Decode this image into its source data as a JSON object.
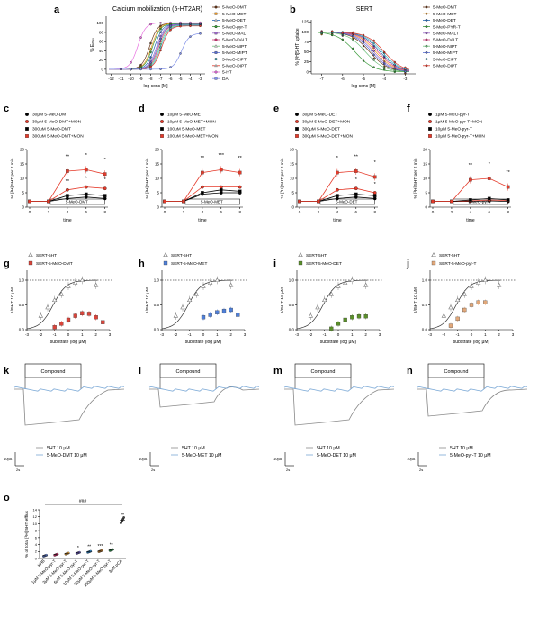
{
  "panels": [
    {
      "id": "a",
      "letter": "a",
      "kind": "curves",
      "title": "Calcium mobilization (5-HT2AR)",
      "ylabel": "% Eₘₐₓ",
      "xlabel": "log conc [M]",
      "xticks": [
        "-12",
        "-11",
        "-10",
        "-9",
        "-8",
        "-7",
        "-6",
        "-5",
        "-4",
        "-3"
      ],
      "yticks": [
        "0",
        "20",
        "40",
        "60",
        "80",
        "100"
      ],
      "legend": [
        "5-MeO-DMT",
        "5-MeO-MET",
        "5-MeO-DET",
        "5-MeO-pyr-T",
        "5-MeO-MALT",
        "5-MeO-DALT",
        "5-MeO-NIPT",
        "5-MeO-MIPT",
        "5-MeO-EIPT",
        "5-MeO-DIPT",
        "5-HT",
        "DA"
      ]
    },
    {
      "id": "b",
      "letter": "b",
      "kind": "curves",
      "title": "SERT",
      "ylabel": "% [³H]5-HT uptake",
      "xlabel": "log conc [M]",
      "xticks": [
        "-7",
        "-6",
        "-5",
        "-4",
        "-3"
      ],
      "yticks": [
        "0",
        "25",
        "50",
        "75",
        "100",
        "125"
      ],
      "legend": [
        "5-MeO-DMT",
        "5-MeO-MET",
        "5-MeO-DET",
        "5-MeO-PYR-T",
        "5-MeO-MALT",
        "5-MeO-DALT",
        "5-MeO-NIPT",
        "5-MeO-MIPT",
        "5-MeO-EIPT",
        "5-MeO-DIPT"
      ]
    },
    {
      "id": "c",
      "letter": "c",
      "kind": "release",
      "ylabel": "% [³H] 5HT per 2 min",
      "xlabel": "time",
      "bar": "5-MeO-DMT",
      "legend": [
        "30μM 5-MeO-DMT",
        "30μM 5-MeO-DMT+MON",
        "300μM 5-MeO-DMT",
        "300μM 5-MeO-DMT+MON"
      ],
      "xticks": [
        "0",
        "2",
        "4",
        "6",
        "8"
      ],
      "yticks": [
        "0",
        "5",
        "10",
        "15",
        "20"
      ]
    },
    {
      "id": "d",
      "letter": "d",
      "kind": "release",
      "ylabel": "% [³H] 5HT per 2 min",
      "xlabel": "time",
      "bar": "5-MeO-MET",
      "legend": [
        "10μM 5-MeO-MET",
        "10μM 5-MeO-MET+MON",
        "100μM 5-MeO-MET",
        "100μM 5-MeO-MET+MON"
      ],
      "xticks": [
        "0",
        "2",
        "4",
        "6",
        "8"
      ],
      "yticks": [
        "0",
        "5",
        "10",
        "15",
        "20"
      ]
    },
    {
      "id": "e",
      "letter": "e",
      "kind": "release",
      "ylabel": "% [³H] 5HT per 2 min",
      "xlabel": "time",
      "bar": "5-MeO-DET",
      "legend": [
        "30μM 5-MeO-DET",
        "30μM 5-MeO-DET+MON",
        "300μM 5-MeO-DET",
        "300μM 5-MeO-DET+MON"
      ],
      "xticks": [
        "0",
        "2",
        "4",
        "6",
        "8"
      ],
      "yticks": [
        "0",
        "5",
        "10",
        "15",
        "20"
      ]
    },
    {
      "id": "f",
      "letter": "f",
      "kind": "release",
      "ylabel": "% [³H] 5HT per 2 min",
      "xlabel": "time",
      "bar": "5-MeO-pyr-T",
      "legend": [
        "1μM 5-MeO-pyr-T",
        "1μM 5-MeO-pyr-T+MON",
        "10μM 5-MeO-pyr-T",
        "10μM 5-MeO-pyr-T+MON"
      ],
      "xticks": [
        "0",
        "2",
        "4",
        "6",
        "8"
      ],
      "yticks": [
        "0",
        "5",
        "10",
        "15",
        "20"
      ]
    },
    {
      "id": "g",
      "letter": "g",
      "kind": "ratio",
      "ylabel": "I/I5HT 10 μM",
      "xlabel": "substrate (log μM)",
      "legend": [
        "SERT-5HT",
        "SERT-5-MeO-DMT"
      ],
      "color": "#d9443a",
      "xticks": [
        "-3",
        "-2",
        "-1",
        "0",
        "1",
        "2",
        "3"
      ],
      "yticks": [
        "0.0",
        "0.5",
        "1.0"
      ]
    },
    {
      "id": "h",
      "letter": "h",
      "kind": "ratio",
      "ylabel": "I/I5HT 10 μM",
      "xlabel": "substrate (log μM)",
      "legend": [
        "SERT-5HT",
        "SERT-5-MeO-MET"
      ],
      "color": "#4f7fd8",
      "xticks": [
        "-3",
        "-2",
        "-1",
        "0",
        "1",
        "2",
        "3"
      ],
      "yticks": [
        "0.0",
        "0.5",
        "1.0"
      ]
    },
    {
      "id": "i",
      "letter": "i",
      "kind": "ratio",
      "ylabel": "I/I5HT 10 μM",
      "xlabel": "substrate (log μM)",
      "legend": [
        "SERT-5HT",
        "SERT-5-MeO-DET"
      ],
      "color": "#5a8f2a",
      "xticks": [
        "-3",
        "-2",
        "-1",
        "0",
        "1",
        "2",
        "3"
      ],
      "yticks": [
        "0.0",
        "0.5",
        "1.0"
      ]
    },
    {
      "id": "j",
      "letter": "j",
      "kind": "ratio",
      "ylabel": "I/I5HT 10 μM",
      "xlabel": "substrate (log μM)",
      "legend": [
        "SERT-5HT",
        "SERT-5-MeO-pyr-T"
      ],
      "color": "#e2a87a",
      "xticks": [
        "-3",
        "-2",
        "-1",
        "0",
        "1",
        "2",
        "3"
      ],
      "yticks": [
        "0.0",
        "0.5",
        "1.0"
      ]
    },
    {
      "id": "k",
      "letter": "k",
      "kind": "trace",
      "box": "Compound",
      "legend": [
        "5HT 10 μM",
        "5-MeO-DMT 10 μM"
      ],
      "scale_y": "10pA",
      "scale_x": "2s"
    },
    {
      "id": "l",
      "letter": "l",
      "kind": "trace",
      "box": "Compound",
      "legend": [
        "5HT 10 μM",
        "5-MeO-MET 10 μM"
      ],
      "scale_y": "10pA",
      "scale_x": "2s"
    },
    {
      "id": "m",
      "letter": "m",
      "kind": "trace",
      "box": "Compound",
      "legend": [
        "5HT 10 μM",
        "5-MeO-DET 10 μM"
      ],
      "scale_y": "10pA",
      "scale_x": "2s"
    },
    {
      "id": "n",
      "letter": "n",
      "kind": "trace",
      "box": "Compound",
      "legend": [
        "5HT 10 μM",
        "5-MeO-pyr-T 10 μM"
      ],
      "scale_y": "10pA",
      "scale_x": "2s"
    },
    {
      "id": "o",
      "letter": "o",
      "kind": "scatter",
      "ylabel": "% of total [³H] 5HT efflux",
      "yticks": [
        "0",
        "1",
        "2",
        "3",
        "4",
        "5",
        "6",
        "7",
        "8",
        "9",
        "10",
        "11",
        "12",
        "13",
        "14"
      ],
      "categories": [
        "KHB",
        "1μM 5-MeO-pyr-T",
        "3μM 5-MeO-pyr-T",
        "6μM 5-MeO-pyr-T",
        "10μM 5-MeO-pyr-T",
        "30μM 5-MeO-pyr-T",
        "100μM 5-MeO-pyr-T",
        "3μM pCA"
      ],
      "sig": [
        "",
        "",
        "",
        "*",
        "**",
        "***",
        "**",
        "**"
      ],
      "hash": "###"
    }
  ],
  "chart_data": [
    {
      "type": "line",
      "panel": "a",
      "title": "Calcium mobilization (5-HT2AR)",
      "xlabel": "log conc [M]",
      "ylabel": "% Emax",
      "xlim": [
        -12.5,
        -2.5
      ],
      "ylim": [
        -10,
        115
      ],
      "series": [
        {
          "name": "5-MeO-DMT",
          "color": "#6b3a1d",
          "ec50": -8.1,
          "top": 100
        },
        {
          "name": "5-MeO-MET",
          "color": "#f29a21",
          "ec50": -7.9,
          "top": 100
        },
        {
          "name": "5-MeO-DET",
          "color": "#2468b4",
          "ec50": -7.6,
          "top": 98
        },
        {
          "name": "5-MeO-pyr-T",
          "color": "#3a9b3a",
          "ec50": -7.8,
          "top": 99
        },
        {
          "name": "5-MeO-MALT",
          "color": "#9a66c7",
          "ec50": -7.4,
          "top": 98
        },
        {
          "name": "5-MeO-DALT",
          "color": "#d63a7a",
          "ec50": -7.2,
          "top": 97
        },
        {
          "name": "5-MeO-NIPT",
          "color": "#6dc07a",
          "ec50": -7.1,
          "top": 96
        },
        {
          "name": "5-MeO-MIPT",
          "color": "#5a6fd0",
          "ec50": -7.3,
          "top": 97
        },
        {
          "name": "5-MeO-EIPT",
          "color": "#47b7c9",
          "ec50": -7.0,
          "top": 95
        },
        {
          "name": "5-MeO-DIPT",
          "color": "#e03a2b",
          "ec50": -6.9,
          "top": 94
        },
        {
          "name": "5-HT",
          "color": "#e86ee0",
          "ec50": -9.3,
          "top": 101
        },
        {
          "name": "DA",
          "color": "#7f8fe8",
          "ec50": -4.9,
          "top": 78
        }
      ]
    },
    {
      "type": "line",
      "panel": "b",
      "title": "SERT",
      "xlabel": "log conc [M]",
      "ylabel": "% [3H]5-HT uptake",
      "xlim": [
        -7.5,
        -2.5
      ],
      "ylim": [
        -5,
        130
      ],
      "series": [
        {
          "name": "5-MeO-DMT",
          "color": "#6b3a1d",
          "ic50": -4.7
        },
        {
          "name": "5-MeO-MET",
          "color": "#f29a21",
          "ic50": -4.4
        },
        {
          "name": "5-MeO-DET",
          "color": "#2468b4",
          "ic50": -4.2
        },
        {
          "name": "5-MeO-PYR-T",
          "color": "#3a9b3a",
          "ic50": -5.4
        },
        {
          "name": "5-MeO-MALT",
          "color": "#9a66c7",
          "ic50": -4.5
        },
        {
          "name": "5-MeO-DALT",
          "color": "#d63a7a",
          "ic50": -4.3
        },
        {
          "name": "5-MeO-NIPT",
          "color": "#6dc07a",
          "ic50": -4.9
        },
        {
          "name": "5-MeO-MIPT",
          "color": "#5a6fd0",
          "ic50": -4.6
        },
        {
          "name": "5-MeO-EIPT",
          "color": "#47b7c9",
          "ic50": -4.1
        },
        {
          "name": "5-MeO-DIPT",
          "color": "#e03a2b",
          "ic50": -4.0
        }
      ]
    },
    {
      "type": "line",
      "panel": "c",
      "x": [
        0,
        2,
        4,
        6,
        8
      ],
      "ylim": [
        0,
        20
      ],
      "series": [
        {
          "name": "30μM 5-MeO-DMT",
          "values": [
            2,
            2,
            3,
            3.5,
            3
          ]
        },
        {
          "name": "30μM 5-MeO-DMT+MON",
          "values": [
            2,
            2,
            6,
            7,
            6.5
          ]
        },
        {
          "name": "300μM 5-MeO-DMT",
          "values": [
            2,
            2,
            4,
            4.5,
            4
          ]
        },
        {
          "name": "300μM 5-MeO-DMT+MON",
          "values": [
            2,
            2,
            12.5,
            13,
            11.5
          ]
        }
      ],
      "stars": [
        {
          "x": 4,
          "t": "**"
        },
        {
          "x": 6,
          "t": "*"
        },
        {
          "x": 8,
          "t": "*"
        },
        {
          "x": 4,
          "t": "**",
          "low": true
        },
        {
          "x": 6,
          "t": "*",
          "low": true
        },
        {
          "x": 8,
          "t": "*",
          "low": true
        }
      ]
    },
    {
      "type": "line",
      "panel": "d",
      "x": [
        0,
        2,
        4,
        6,
        8
      ],
      "ylim": [
        0,
        20
      ],
      "series": [
        {
          "name": "10μM 5-MeO-MET",
          "values": [
            2,
            2,
            4.5,
            5,
            5
          ]
        },
        {
          "name": "10μM 5-MeO-MET+MON",
          "values": [
            2,
            2,
            7,
            7,
            7
          ]
        },
        {
          "name": "100μM 5-MeO-MET",
          "values": [
            2,
            2,
            5,
            6,
            5.5
          ]
        },
        {
          "name": "100μM 5-MeO-MET+MON",
          "values": [
            2,
            2,
            12,
            13,
            12
          ]
        }
      ],
      "stars": [
        {
          "x": 4,
          "t": "**"
        },
        {
          "x": 6,
          "t": "***"
        },
        {
          "x": 8,
          "t": "**"
        }
      ]
    },
    {
      "type": "line",
      "panel": "e",
      "x": [
        0,
        2,
        4,
        6,
        8
      ],
      "ylim": [
        0,
        20
      ],
      "series": [
        {
          "name": "30μM 5-MeO-DET",
          "values": [
            2,
            2,
            3,
            3.5,
            3
          ]
        },
        {
          "name": "30μM 5-MeO-DET+MON",
          "values": [
            2,
            2,
            6,
            6.5,
            5
          ]
        },
        {
          "name": "300μM 5-MeO-DET",
          "values": [
            2,
            2,
            4,
            4.5,
            4
          ]
        },
        {
          "name": "300μM 5-MeO-DET+MON",
          "values": [
            2,
            2,
            12,
            12.5,
            10.5
          ]
        }
      ],
      "stars": [
        {
          "x": 4,
          "t": "*"
        },
        {
          "x": 6,
          "t": "**"
        },
        {
          "x": 8,
          "t": "*"
        },
        {
          "x": 6,
          "t": "*",
          "low": true
        },
        {
          "x": 8,
          "t": "*",
          "low": true
        }
      ]
    },
    {
      "type": "line",
      "panel": "f",
      "x": [
        0,
        2,
        4,
        6,
        8
      ],
      "ylim": [
        0,
        20
      ],
      "series": [
        {
          "name": "1μM 5-MeO-pyr-T",
          "values": [
            2,
            2,
            2,
            2.2,
            2
          ]
        },
        {
          "name": "1μM 5-MeO-pyr-T+MON",
          "values": [
            2,
            2,
            2.2,
            2.5,
            2.3
          ]
        },
        {
          "name": "10μM 5-MeO-pyr-T",
          "values": [
            2,
            2,
            2.5,
            3,
            2.5
          ]
        },
        {
          "name": "10μM 5-MeO-pyr-T+MON",
          "values": [
            2,
            2,
            9.5,
            10,
            7
          ]
        }
      ],
      "stars": [
        {
          "x": 4,
          "t": "**"
        },
        {
          "x": 6,
          "t": "*"
        },
        {
          "x": 8,
          "t": "**"
        }
      ]
    },
    {
      "type": "scatter",
      "panel": "g",
      "xlim": [
        -3,
        3
      ],
      "ylim": [
        0,
        1.2
      ],
      "series": [
        {
          "name": "SERT-5HT",
          "x": [
            -2,
            -1.5,
            -1,
            -0.5,
            0,
            0.5,
            1,
            2
          ],
          "values": [
            0.28,
            0.45,
            0.6,
            0.72,
            0.88,
            0.95,
            1.0,
            0.9
          ]
        },
        {
          "name": "SERT-5-MeO-DMT",
          "x": [
            -1,
            -0.5,
            0,
            0.5,
            1,
            1.5,
            2,
            2.5
          ],
          "values": [
            0.05,
            0.12,
            0.2,
            0.28,
            0.33,
            0.32,
            0.25,
            0.15
          ]
        }
      ]
    },
    {
      "type": "scatter",
      "panel": "h",
      "xlim": [
        -3,
        3
      ],
      "ylim": [
        0,
        1.2
      ],
      "series": [
        {
          "name": "SERT-5HT",
          "x": [
            -2,
            -1.5,
            -1,
            -0.5,
            0,
            0.5,
            1,
            2
          ],
          "values": [
            0.28,
            0.45,
            0.6,
            0.72,
            0.88,
            0.95,
            1.0,
            0.9
          ]
        },
        {
          "name": "SERT-5-MeO-MET",
          "x": [
            0,
            0.5,
            1,
            1.5,
            2,
            2.5
          ],
          "values": [
            0.25,
            0.3,
            0.35,
            0.38,
            0.4,
            0.3
          ]
        }
      ]
    },
    {
      "type": "scatter",
      "panel": "i",
      "xlim": [
        -3,
        3
      ],
      "ylim": [
        0,
        1.2
      ],
      "series": [
        {
          "name": "SERT-5HT",
          "x": [
            -2,
            -1.5,
            -1,
            -0.5,
            0,
            0.5,
            1,
            2
          ],
          "values": [
            0.28,
            0.45,
            0.6,
            0.72,
            0.88,
            0.95,
            1.0,
            0.9
          ]
        },
        {
          "name": "SERT-5-MeO-DET",
          "x": [
            -0.5,
            0,
            0.5,
            1,
            1.5,
            2
          ],
          "values": [
            0.02,
            0.12,
            0.2,
            0.25,
            0.27,
            0.27
          ]
        }
      ]
    },
    {
      "type": "scatter",
      "panel": "j",
      "xlim": [
        -3,
        3
      ],
      "ylim": [
        0,
        1.2
      ],
      "series": [
        {
          "name": "SERT-5HT",
          "x": [
            -2,
            -1.5,
            -1,
            -0.5,
            0,
            0.5,
            1,
            2
          ],
          "values": [
            0.28,
            0.45,
            0.6,
            0.72,
            0.88,
            0.95,
            1.0,
            0.9
          ]
        },
        {
          "name": "SERT-5-MeO-pyr-T",
          "x": [
            -1.5,
            -1,
            -0.5,
            0,
            0.5,
            1
          ],
          "values": [
            0.08,
            0.22,
            0.4,
            0.5,
            0.55,
            0.55
          ]
        }
      ]
    },
    {
      "type": "scatter",
      "panel": "o",
      "ylabel": "% of total [3H] 5HT efflux",
      "ylim": [
        0,
        14
      ],
      "categories": [
        "KHB",
        "1μM 5-MeO-pyr-T",
        "3μM 5-MeO-pyr-T",
        "6μM 5-MeO-pyr-T",
        "10μM 5-MeO-pyr-T",
        "30μM 5-MeO-pyr-T",
        "100μM 5-MeO-pyr-T",
        "3μM pCA"
      ],
      "values": [
        0.8,
        1.1,
        1.4,
        1.6,
        1.9,
        2.1,
        2.4,
        11.0
      ],
      "colors": [
        "#6d8be0",
        "#e23a7a",
        "#e0a040",
        "#7a6ad0",
        "#3a8fd0",
        "#d08a3a",
        "#3a9b5a",
        "#444444"
      ]
    }
  ]
}
